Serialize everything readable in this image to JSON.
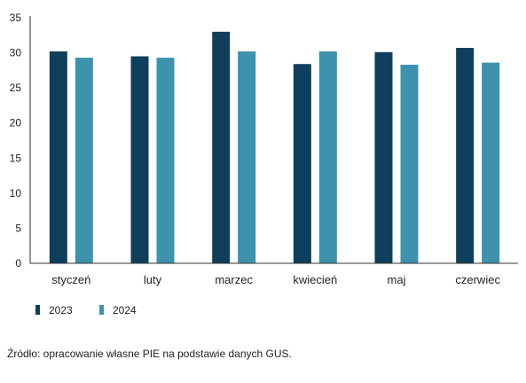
{
  "chart_data": {
    "type": "bar",
    "categories": [
      "styczeń",
      "luty",
      "marzec",
      "kwiecień",
      "maj",
      "czerwiec"
    ],
    "series": [
      {
        "name": "2023",
        "color": "#0f3f5c",
        "values": [
          30.2,
          29.5,
          33.0,
          28.4,
          30.1,
          30.7
        ]
      },
      {
        "name": "2024",
        "color": "#3d93ad",
        "values": [
          29.3,
          29.3,
          30.2,
          30.2,
          28.3,
          28.6
        ]
      }
    ],
    "yticks": [
      0,
      5,
      10,
      15,
      20,
      25,
      30,
      35
    ],
    "ylim": [
      0,
      35
    ],
    "grid": false,
    "legend_position": "bottom-left"
  },
  "source_note": "Źródło: opracowanie własne PIE na podstawie danych GUS."
}
